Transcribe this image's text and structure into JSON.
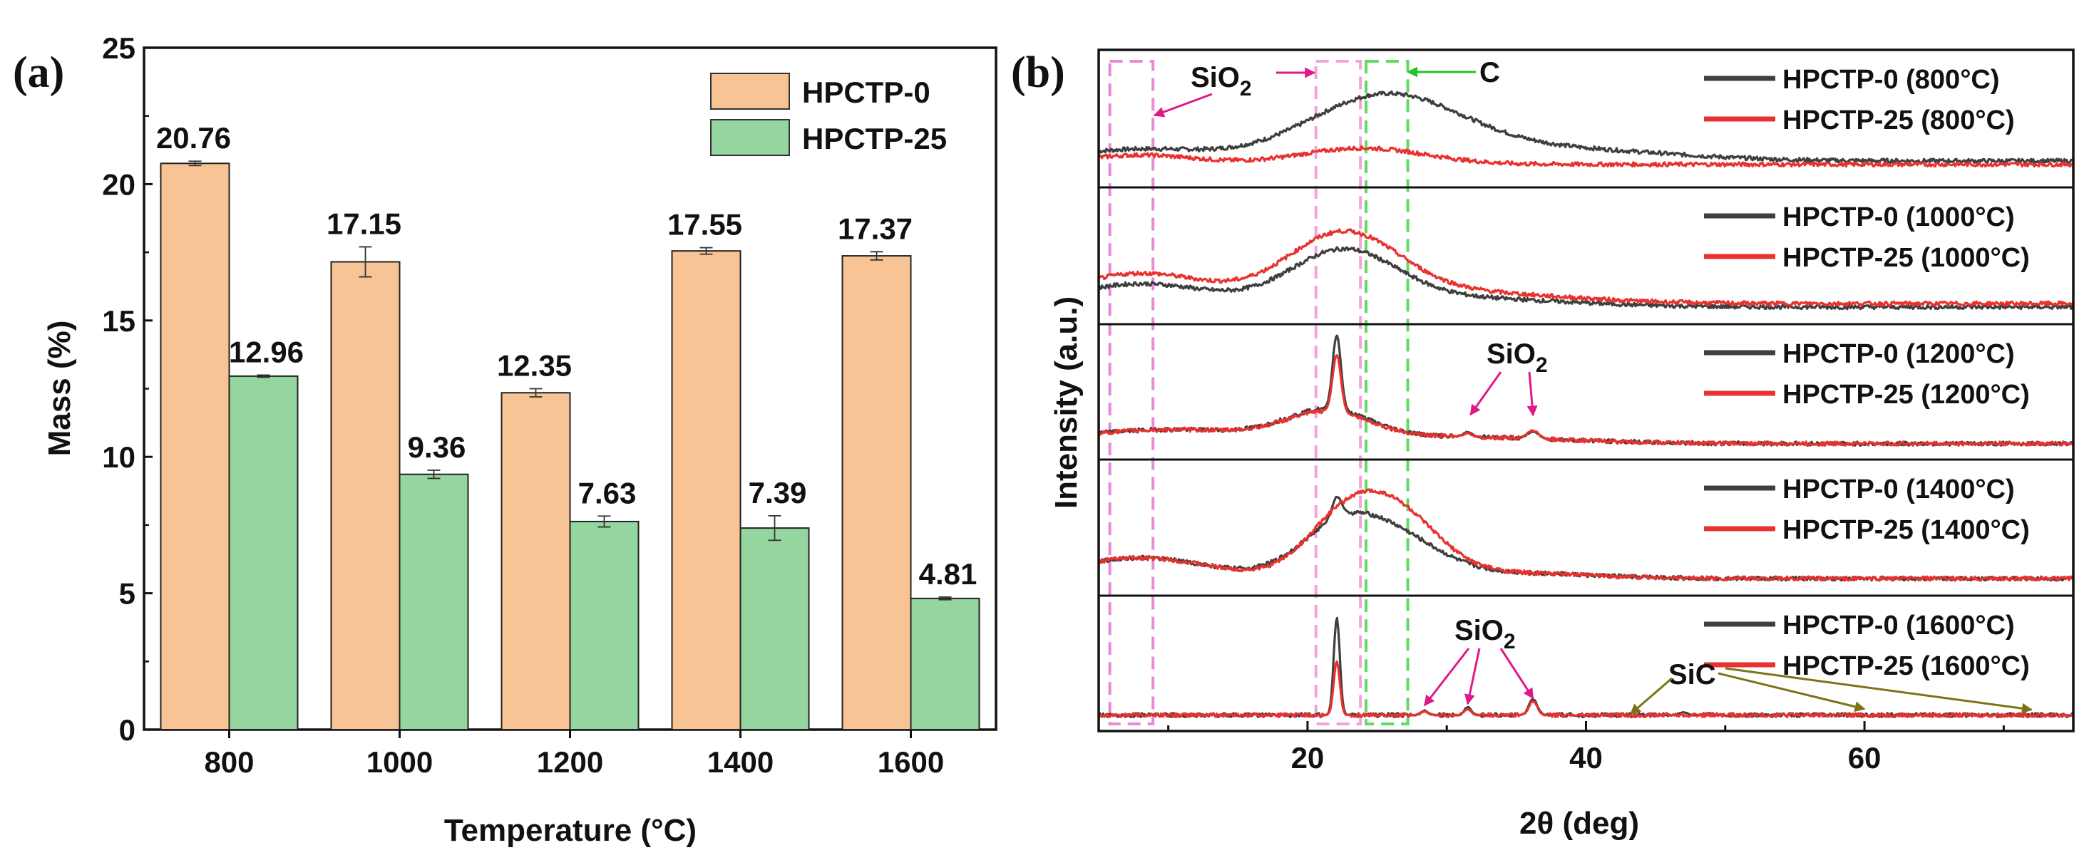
{
  "chart_data": [
    {
      "type": "bar",
      "panel_label": "(a)",
      "xlabel": "Temperature (°C)",
      "ylabel": "Mass (%)",
      "ylim": [
        0,
        25
      ],
      "yticks": [
        0,
        5,
        10,
        15,
        20,
        25
      ],
      "categories": [
        "800",
        "1000",
        "1200",
        "1400",
        "1600"
      ],
      "series": [
        {
          "name": "HPCTP-0",
          "color": "#f9c495",
          "values": [
            20.76,
            17.15,
            12.35,
            17.55,
            17.37
          ],
          "labels": [
            "20.76",
            "17.15",
            "12.35",
            "17.55",
            "17.37"
          ],
          "errors": [
            0.08,
            0.55,
            0.15,
            0.12,
            0.15
          ]
        },
        {
          "name": "HPCTP-25",
          "color": "#95d6a0",
          "values": [
            12.96,
            9.36,
            7.63,
            7.39,
            4.81
          ],
          "labels": [
            "12.96",
            "9.36",
            "7.63",
            "7.39",
            "4.81"
          ],
          "errors": [
            0.04,
            0.15,
            0.2,
            0.45,
            0.05
          ]
        }
      ],
      "legend_position": "top-right"
    },
    {
      "type": "line",
      "panel_label": "(b)",
      "xlabel": "2θ (deg)",
      "ylabel": "Intensity (a.u.)",
      "xlim": [
        5,
        75
      ],
      "xticks": [
        20,
        40,
        60
      ],
      "series_colors": {
        "HPCTP-0": "#3f3f3f",
        "HPCTP-25": "#e8322f"
      },
      "panels": [
        {
          "temperature": "800°C",
          "legend": [
            "HPCTP-0 (800°C)",
            "HPCTP-25 (800°C)"
          ],
          "HPCTP-0": {
            "base": 0.13,
            "broad": [
              [
                8,
                0.1,
                5
              ],
              [
                25.5,
                0.55,
                5.5
              ],
              [
                38,
                0.1,
                8
              ]
            ],
            "sharp": []
          },
          "HPCTP-25": {
            "base": 0.1,
            "broad": [
              [
                8,
                0.08,
                4
              ],
              [
                24,
                0.14,
                4.5
              ]
            ],
            "sharp": []
          }
        },
        {
          "temperature": "1000°C",
          "legend": [
            "HPCTP-0 (1000°C)",
            "HPCTP-25 (1000°C)"
          ],
          "HPCTP-0": {
            "base": 0.05,
            "broad": [
              [
                8,
                0.2,
                5
              ],
              [
                22.5,
                0.45,
                3.8
              ],
              [
                30,
                0.08,
                8
              ]
            ],
            "sharp": []
          },
          "HPCTP-25": {
            "base": 0.08,
            "broad": [
              [
                8,
                0.26,
                5
              ],
              [
                22.5,
                0.56,
                4.0
              ],
              [
                30,
                0.1,
                8
              ]
            ],
            "sharp": []
          }
        },
        {
          "temperature": "1200°C",
          "legend": [
            "HPCTP-0 (1200°C)",
            "HPCTP-25 (1200°C)"
          ],
          "HPCTP-0": {
            "base": 0.04,
            "broad": [
              [
                10,
                0.12,
                7
              ],
              [
                21.5,
                0.24,
                3.0
              ],
              [
                30,
                0.06,
                8
              ]
            ],
            "sharp": [
              [
                22.1,
                0.65,
                0.3
              ],
              [
                31.5,
                0.04,
                0.3
              ],
              [
                36.2,
                0.06,
                0.4
              ]
            ]
          },
          "HPCTP-25": {
            "base": 0.04,
            "broad": [
              [
                10,
                0.12,
                7
              ],
              [
                21.5,
                0.22,
                3.0
              ],
              [
                30,
                0.06,
                8
              ]
            ],
            "sharp": [
              [
                22.1,
                0.5,
                0.3
              ],
              [
                31.5,
                0.03,
                0.3
              ],
              [
                36.2,
                0.07,
                0.4
              ]
            ]
          }
        },
        {
          "temperature": "1400°C",
          "legend": [
            "HPCTP-0 (1400°C)",
            "HPCTP-25 (1400°C)"
          ],
          "HPCTP-0": {
            "base": 0.05,
            "broad": [
              [
                8,
                0.18,
                5
              ],
              [
                22.5,
                0.46,
                3.0
              ],
              [
                27,
                0.25,
                3.0
              ],
              [
                34,
                0.05,
                6
              ]
            ],
            "sharp": [
              [
                22.1,
                0.18,
                0.35
              ]
            ]
          },
          "HPCTP-25": {
            "base": 0.05,
            "broad": [
              [
                8,
                0.18,
                5
              ],
              [
                22.5,
                0.45,
                2.8
              ],
              [
                26.5,
                0.5,
                3.0
              ],
              [
                34,
                0.05,
                6
              ]
            ],
            "sharp": []
          }
        },
        {
          "temperature": "1600°C",
          "legend": [
            "HPCTP-0 (1600°C)",
            "HPCTP-25 (1600°C)"
          ],
          "HPCTP-0": {
            "base": 0.04,
            "broad": [],
            "sharp": [
              [
                22.1,
                0.85,
                0.22
              ],
              [
                28.4,
                0.04,
                0.25
              ],
              [
                31.5,
                0.07,
                0.25
              ],
              [
                36.2,
                0.14,
                0.3
              ],
              [
                47,
                0.02,
                0.3
              ],
              [
                48.8,
                0.02,
                0.3
              ]
            ]
          },
          "HPCTP-25": {
            "base": 0.04,
            "broad": [],
            "sharp": [
              [
                22.1,
                0.47,
                0.22
              ],
              [
                28.4,
                0.03,
                0.25
              ],
              [
                31.5,
                0.05,
                0.25
              ],
              [
                36.2,
                0.12,
                0.3
              ]
            ]
          }
        }
      ],
      "annotations": [
        {
          "text": "SiO",
          "subscript": "2",
          "panel": 0,
          "targets_x": [
            9,
            20.5
          ]
        },
        {
          "text": "C",
          "panel": 0,
          "targets_x": [
            27
          ]
        },
        {
          "text": "SiO",
          "subscript": "2",
          "panel": 2,
          "targets_x": [
            31.5,
            36.2
          ]
        },
        {
          "text": "SiO",
          "subscript": "2",
          "panel": 4,
          "targets_x": [
            28.4,
            31.5,
            36.2
          ]
        },
        {
          "text": "SiC",
          "panel": 4,
          "targets_x": [
            43,
            60,
            72
          ]
        }
      ],
      "reference_bands": [
        {
          "color": "#e88ad9",
          "x": [
            5.8,
            8.9
          ]
        },
        {
          "color": "#f4a3d8",
          "x": [
            20.6,
            23.8
          ]
        },
        {
          "color": "#5fdc5f",
          "x": [
            24.2,
            27.2
          ]
        }
      ]
    }
  ]
}
